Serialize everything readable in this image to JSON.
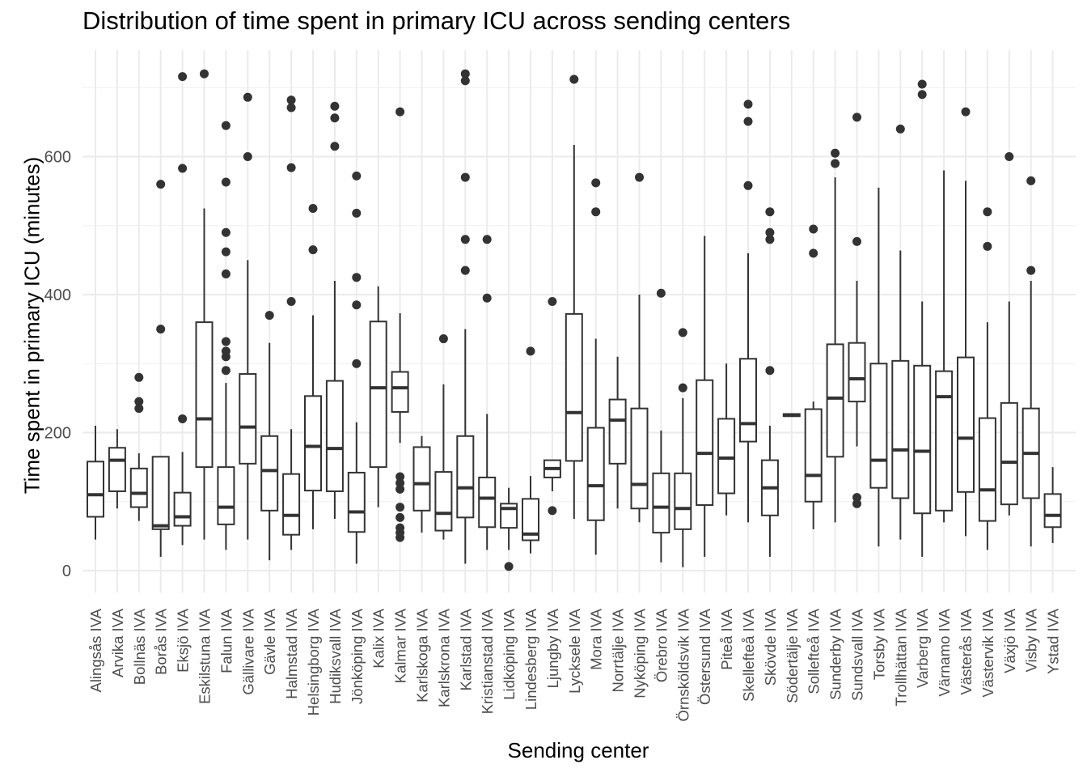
{
  "chart_data": {
    "type": "box",
    "title": "Distribution of time spent in primary ICU across sending centers",
    "xlabel": "Sending center",
    "ylabel": "Time spent in primary ICU (minutes)",
    "ylim": [
      -35,
      745
    ],
    "yticks": [
      0,
      200,
      400,
      600
    ],
    "grid": true,
    "colors": {
      "box_stroke": "#333333",
      "grid_major": "#ebebeb",
      "grid_minor": "#f4f4f4",
      "tick_text": "#4d4d4d"
    },
    "categories": [
      "Alingsås IVA",
      "Arvika IVA",
      "Bollnäs IVA",
      "Borås IVA",
      "Eksjö IVA",
      "Eskilstuna IVA",
      "Falun IVA",
      "Gällivare IVA",
      "Gävle IVA",
      "Halmstad IVA",
      "Helsingborg IVA",
      "Hudiksvall IVA",
      "Jönköping IVA",
      "Kalix IVA",
      "Kalmar IVA",
      "Karlskoga IVA",
      "Karlskrona IVA",
      "Karlstad IVA",
      "Kristianstad IVA",
      "Lidköping IVA",
      "Lindesberg IVA",
      "Ljungby IVA",
      "Lycksele IVA",
      "Mora IVA",
      "Norrtälje IVA",
      "Nyköping IVA",
      "Örebro IVA",
      "Örnsköldsvik IVA",
      "Östersund IVA",
      "Piteå IVA",
      "Skellefteå IVA",
      "Skövde IVA",
      "Södertälje IVA",
      "Sollefteå IVA",
      "Sunderby IVA",
      "Sundsvall IVA",
      "Torsby IVA",
      "Trollhättan IVA",
      "Varberg IVA",
      "Värnamo IVA",
      "Västerås IVA",
      "Västervik IVA",
      "Växjö IVA",
      "Visby IVA",
      "Ystad IVA"
    ],
    "boxes": [
      {
        "min": 45,
        "q1": 78,
        "median": 110,
        "q3": 158,
        "max": 210,
        "outliers": []
      },
      {
        "min": 90,
        "q1": 115,
        "median": 160,
        "q3": 178,
        "max": 205,
        "outliers": []
      },
      {
        "min": 72,
        "q1": 92,
        "median": 112,
        "q3": 148,
        "max": 170,
        "outliers": [
          235,
          245,
          280
        ]
      },
      {
        "min": 20,
        "q1": 60,
        "median": 65,
        "q3": 165,
        "max": 165,
        "outliers": [
          350,
          560
        ]
      },
      {
        "min": 37,
        "q1": 65,
        "median": 78,
        "q3": 113,
        "max": 172,
        "outliers": [
          220,
          583,
          716
        ]
      },
      {
        "min": 45,
        "q1": 150,
        "median": 220,
        "q3": 360,
        "max": 525,
        "outliers": [
          720
        ]
      },
      {
        "min": 30,
        "q1": 67,
        "median": 92,
        "q3": 150,
        "max": 272,
        "outliers": [
          290,
          310,
          318,
          332,
          430,
          462,
          490,
          563,
          645
        ]
      },
      {
        "min": 45,
        "q1": 155,
        "median": 208,
        "q3": 285,
        "max": 450,
        "outliers": [
          600,
          686
        ]
      },
      {
        "min": 15,
        "q1": 87,
        "median": 145,
        "q3": 195,
        "max": 330,
        "outliers": [
          370
        ]
      },
      {
        "min": 30,
        "q1": 52,
        "median": 80,
        "q3": 140,
        "max": 205,
        "outliers": [
          390,
          584,
          671,
          682
        ]
      },
      {
        "min": 60,
        "q1": 116,
        "median": 180,
        "q3": 253,
        "max": 370,
        "outliers": [
          465,
          525
        ]
      },
      {
        "min": 75,
        "q1": 115,
        "median": 177,
        "q3": 275,
        "max": 420,
        "outliers": [
          615,
          656,
          673
        ]
      },
      {
        "min": 10,
        "q1": 56,
        "median": 85,
        "q3": 142,
        "max": 215,
        "outliers": [
          300,
          385,
          425,
          518,
          572
        ]
      },
      {
        "min": 92,
        "q1": 150,
        "median": 265,
        "q3": 361,
        "max": 412,
        "outliers": []
      },
      {
        "min": 185,
        "q1": 230,
        "median": 265,
        "q3": 288,
        "max": 373,
        "outliers": [
          48,
          55,
          62,
          77,
          92,
          118,
          127,
          136,
          665
        ]
      },
      {
        "min": 55,
        "q1": 87,
        "median": 126,
        "q3": 179,
        "max": 195,
        "outliers": []
      },
      {
        "min": 45,
        "q1": 58,
        "median": 83,
        "q3": 143,
        "max": 270,
        "outliers": [
          336
        ]
      },
      {
        "min": 10,
        "q1": 77,
        "median": 120,
        "q3": 195,
        "max": 350,
        "outliers": [
          435,
          480,
          570,
          710,
          720
        ]
      },
      {
        "min": 30,
        "q1": 63,
        "median": 105,
        "q3": 135,
        "max": 227,
        "outliers": [
          395,
          480
        ]
      },
      {
        "min": 30,
        "q1": 62,
        "median": 90,
        "q3": 97,
        "max": 120,
        "outliers": [
          6
        ]
      },
      {
        "min": 25,
        "q1": 44,
        "median": 53,
        "q3": 104,
        "max": 137,
        "outliers": [
          318
        ]
      },
      {
        "min": 115,
        "q1": 135,
        "median": 148,
        "q3": 160,
        "max": 160,
        "outliers": [
          87,
          390
        ]
      },
      {
        "min": 75,
        "q1": 159,
        "median": 229,
        "q3": 372,
        "max": 617,
        "outliers": [
          712
        ]
      },
      {
        "min": 23,
        "q1": 73,
        "median": 123,
        "q3": 207,
        "max": 336,
        "outliers": [
          520,
          562
        ]
      },
      {
        "min": 90,
        "q1": 155,
        "median": 218,
        "q3": 248,
        "max": 310,
        "outliers": []
      },
      {
        "min": 70,
        "q1": 90,
        "median": 125,
        "q3": 235,
        "max": 400,
        "outliers": [
          570
        ]
      },
      {
        "min": 12,
        "q1": 55,
        "median": 92,
        "q3": 141,
        "max": 203,
        "outliers": [
          402
        ]
      },
      {
        "min": 5,
        "q1": 60,
        "median": 90,
        "q3": 141,
        "max": 250,
        "outliers": [
          265,
          345
        ]
      },
      {
        "min": 20,
        "q1": 95,
        "median": 170,
        "q3": 276,
        "max": 485,
        "outliers": []
      },
      {
        "min": 80,
        "q1": 112,
        "median": 163,
        "q3": 220,
        "max": 300,
        "outliers": []
      },
      {
        "min": 70,
        "q1": 187,
        "median": 213,
        "q3": 307,
        "max": 460,
        "outliers": [
          558,
          651,
          676
        ]
      },
      {
        "min": 20,
        "q1": 80,
        "median": 120,
        "q3": 160,
        "max": 210,
        "outliers": [
          290,
          480,
          490,
          520
        ]
      },
      {
        "min": 224,
        "q1": 224,
        "median": 225,
        "q3": 227,
        "max": 227,
        "outliers": []
      },
      {
        "min": 60,
        "q1": 100,
        "median": 138,
        "q3": 234,
        "max": 245,
        "outliers": [
          460,
          495
        ]
      },
      {
        "min": 70,
        "q1": 165,
        "median": 250,
        "q3": 328,
        "max": 570,
        "outliers": [
          590,
          605
        ]
      },
      {
        "min": 180,
        "q1": 245,
        "median": 278,
        "q3": 330,
        "max": 420,
        "outliers": [
          97,
          106,
          477,
          657
        ]
      },
      {
        "min": 35,
        "q1": 120,
        "median": 160,
        "q3": 300,
        "max": 555,
        "outliers": []
      },
      {
        "min": 45,
        "q1": 105,
        "median": 175,
        "q3": 304,
        "max": 464,
        "outliers": [
          640
        ]
      },
      {
        "min": 20,
        "q1": 83,
        "median": 173,
        "q3": 297,
        "max": 390,
        "outliers": [
          690,
          705
        ]
      },
      {
        "min": 70,
        "q1": 87,
        "median": 252,
        "q3": 289,
        "max": 580,
        "outliers": []
      },
      {
        "min": 50,
        "q1": 114,
        "median": 192,
        "q3": 309,
        "max": 565,
        "outliers": [
          665
        ]
      },
      {
        "min": 30,
        "q1": 72,
        "median": 117,
        "q3": 221,
        "max": 360,
        "outliers": [
          470,
          520
        ]
      },
      {
        "min": 80,
        "q1": 96,
        "median": 157,
        "q3": 243,
        "max": 390,
        "outliers": [
          600
        ]
      },
      {
        "min": 35,
        "q1": 105,
        "median": 170,
        "q3": 235,
        "max": 420,
        "outliers": [
          435,
          565
        ]
      },
      {
        "min": 40,
        "q1": 63,
        "median": 80,
        "q3": 111,
        "max": 150,
        "outliers": []
      }
    ]
  }
}
